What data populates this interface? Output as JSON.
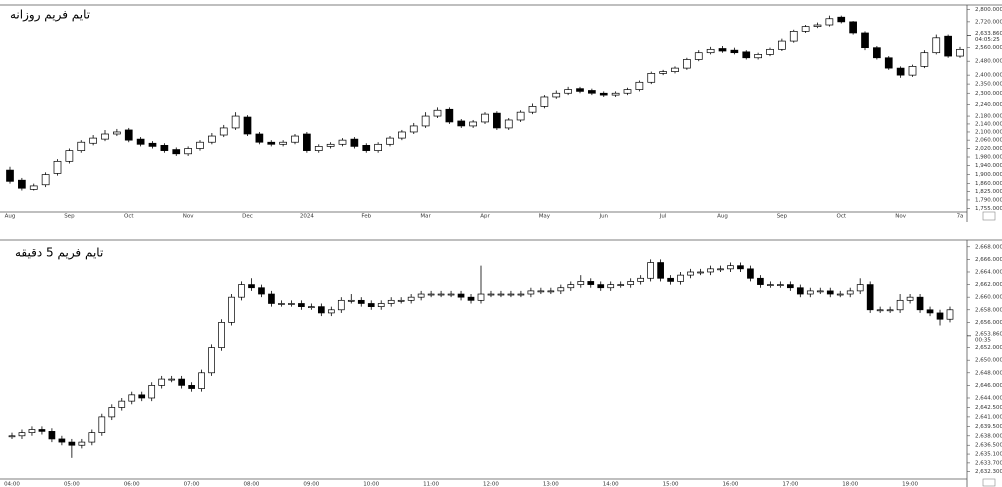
{
  "chart_data": [
    {
      "type": "candlestick",
      "title": "تایم فریم روزانه",
      "log_scale": true,
      "grid": false,
      "up_color": "#ffffff",
      "down_color": "#000000",
      "categories": [
        "Aug",
        null,
        null,
        null,
        null,
        "Sep",
        null,
        null,
        null,
        null,
        "Oct",
        null,
        null,
        null,
        null,
        "Nov",
        null,
        null,
        null,
        null,
        "Dec",
        null,
        null,
        null,
        null,
        "2024",
        null,
        null,
        null,
        null,
        "Feb",
        null,
        null,
        null,
        null,
        "Mar",
        null,
        null,
        null,
        null,
        "Apr",
        null,
        null,
        null,
        null,
        "May",
        null,
        null,
        null,
        null,
        "Jun",
        null,
        null,
        null,
        null,
        "Jul",
        null,
        null,
        null,
        null,
        "Aug",
        null,
        null,
        null,
        null,
        "Sep",
        null,
        null,
        null,
        null,
        "Oct",
        null,
        null,
        null,
        null,
        "Nov",
        null,
        null,
        null,
        null,
        "7a"
      ],
      "open": [
        1920,
        1875,
        1835,
        1855,
        1905,
        1960,
        2010,
        2045,
        2065,
        2090,
        2110,
        2065,
        2045,
        2035,
        2015,
        1995,
        2020,
        2050,
        2085,
        2120,
        2175,
        2090,
        2050,
        2040,
        2050,
        2090,
        2010,
        2030,
        2040,
        2065,
        2035,
        2010,
        2040,
        2070,
        2100,
        2130,
        2180,
        2215,
        2155,
        2130,
        2150,
        2195,
        2120,
        2160,
        2200,
        2230,
        2280,
        2300,
        2325,
        2315,
        2300,
        2290,
        2300,
        2320,
        2360,
        2410,
        2420,
        2440,
        2490,
        2530,
        2555,
        2545,
        2535,
        2500,
        2520,
        2550,
        2600,
        2660,
        2690,
        2700,
        2750,
        2720,
        2650,
        2560,
        2500,
        2440,
        2400,
        2450,
        2530,
        2630,
        2510
      ],
      "high": [
        1935,
        1885,
        1860,
        1910,
        1970,
        2020,
        2060,
        2085,
        2110,
        2115,
        2120,
        2075,
        2055,
        2045,
        2025,
        2030,
        2060,
        2095,
        2135,
        2200,
        2185,
        2100,
        2060,
        2060,
        2090,
        2100,
        2040,
        2050,
        2070,
        2075,
        2045,
        2050,
        2080,
        2110,
        2145,
        2200,
        2225,
        2225,
        2165,
        2160,
        2200,
        2205,
        2170,
        2210,
        2245,
        2290,
        2315,
        2335,
        2335,
        2325,
        2310,
        2310,
        2330,
        2370,
        2420,
        2430,
        2450,
        2500,
        2545,
        2565,
        2570,
        2560,
        2545,
        2530,
        2560,
        2615,
        2670,
        2700,
        2715,
        2760,
        2760,
        2725,
        2660,
        2570,
        2510,
        2450,
        2460,
        2545,
        2640,
        2640,
        2565
      ],
      "low": [
        1860,
        1830,
        1830,
        1845,
        1895,
        1950,
        2000,
        2035,
        2055,
        2080,
        2050,
        2030,
        2020,
        2000,
        1985,
        1985,
        2010,
        2040,
        2075,
        2110,
        2080,
        2040,
        2030,
        2030,
        2040,
        2000,
        2000,
        2020,
        2030,
        2020,
        2000,
        2000,
        2030,
        2060,
        2090,
        2120,
        2170,
        2140,
        2120,
        2120,
        2140,
        2110,
        2110,
        2150,
        2190,
        2220,
        2270,
        2290,
        2300,
        2290,
        2280,
        2280,
        2290,
        2310,
        2350,
        2400,
        2410,
        2430,
        2480,
        2520,
        2530,
        2520,
        2490,
        2490,
        2510,
        2540,
        2590,
        2650,
        2680,
        2690,
        2710,
        2640,
        2545,
        2490,
        2430,
        2385,
        2390,
        2440,
        2520,
        2500,
        2500
      ],
      "close": [
        1870,
        1840,
        1850,
        1900,
        1960,
        2010,
        2050,
        2070,
        2090,
        2100,
        2060,
        2040,
        2030,
        2010,
        1995,
        2020,
        2050,
        2080,
        2120,
        2180,
        2090,
        2050,
        2040,
        2050,
        2080,
        2010,
        2030,
        2040,
        2060,
        2030,
        2010,
        2040,
        2070,
        2100,
        2130,
        2180,
        2210,
        2150,
        2130,
        2150,
        2190,
        2120,
        2160,
        2200,
        2230,
        2280,
        2300,
        2320,
        2310,
        2300,
        2290,
        2300,
        2320,
        2360,
        2410,
        2420,
        2440,
        2490,
        2530,
        2550,
        2540,
        2530,
        2500,
        2520,
        2550,
        2600,
        2660,
        2690,
        2700,
        2740,
        2720,
        2650,
        2560,
        2500,
        2440,
        2400,
        2450,
        2530,
        2620,
        2510,
        2550
      ],
      "ylim": [
        1740,
        2830
      ],
      "yticks": [
        {
          "value": 2800,
          "label": "2,800.000"
        },
        {
          "value": 2720,
          "label": "2,720.000"
        },
        {
          "value": 2560,
          "label": "2,560.000"
        },
        {
          "value": 2480,
          "label": "2,480.000"
        },
        {
          "value": 2400,
          "label": "2,400.000"
        },
        {
          "value": 2350,
          "label": "2,350.000"
        },
        {
          "value": 2300,
          "label": "2,300.000"
        },
        {
          "value": 2240,
          "label": "2,240.000"
        },
        {
          "value": 2180,
          "label": "2,180.000"
        },
        {
          "value": 2140,
          "label": "2,140.000"
        },
        {
          "value": 2100,
          "label": "2,100.000"
        },
        {
          "value": 2060,
          "label": "2,060.000"
        },
        {
          "value": 2020,
          "label": "2,020.000"
        },
        {
          "value": 1980,
          "label": "1,980.000"
        },
        {
          "value": 1940,
          "label": "1,940.000"
        },
        {
          "value": 1900,
          "label": "1,900.000"
        },
        {
          "value": 1860,
          "label": "1,860.000"
        },
        {
          "value": 1825,
          "label": "1,825.000"
        },
        {
          "value": 1790,
          "label": "1,790.000"
        },
        {
          "value": 1755,
          "label": "1,755.000"
        }
      ],
      "price_marker": {
        "value": 2633.86,
        "label": "2,633.860",
        "timer": "04:05:25"
      }
    },
    {
      "type": "candlestick",
      "title": "تایم فریم 5 دقیقه",
      "log_scale": false,
      "grid": false,
      "up_color": "#ffffff",
      "down_color": "#000000",
      "categories": [
        "04:00",
        null,
        null,
        null,
        null,
        null,
        "05:00",
        null,
        null,
        null,
        null,
        null,
        "06:00",
        null,
        null,
        null,
        null,
        null,
        "07:00",
        null,
        null,
        null,
        null,
        null,
        "08:00",
        null,
        null,
        null,
        null,
        null,
        "09:00",
        null,
        null,
        null,
        null,
        null,
        "10:00",
        null,
        null,
        null,
        null,
        null,
        "11:00",
        null,
        null,
        null,
        null,
        null,
        "12:00",
        null,
        null,
        null,
        null,
        null,
        "13:00",
        null,
        null,
        null,
        null,
        null,
        "14:00",
        null,
        null,
        null,
        null,
        null,
        "15:00",
        null,
        null,
        null,
        null,
        null,
        "16:00",
        null,
        null,
        null,
        null,
        null,
        "17:00",
        null,
        null,
        null,
        null,
        null,
        "18:00",
        null,
        null,
        null,
        null,
        null,
        "19:00",
        null,
        null,
        null,
        null
      ],
      "open": [
        2638,
        2638,
        2638.5,
        2639,
        2638.7,
        2637.5,
        2637,
        2636.5,
        2637,
        2638.5,
        2641,
        2642.5,
        2643.5,
        2644.5,
        2644,
        2646,
        2647,
        2647,
        2646,
        2645.5,
        2648,
        2652,
        2656,
        2660,
        2662,
        2661.5,
        2660.5,
        2659,
        2659,
        2659,
        2658.5,
        2658.5,
        2657.5,
        2658,
        2659.5,
        2659.5,
        2659,
        2658.5,
        2659,
        2659.5,
        2659.5,
        2660,
        2660.5,
        2660.5,
        2660.5,
        2660.5,
        2660,
        2659.5,
        2660.5,
        2660.5,
        2660.5,
        2660.5,
        2660.5,
        2661,
        2661,
        2661,
        2661.5,
        2662,
        2662.5,
        2662,
        2661.5,
        2662,
        2662,
        2662.5,
        2663,
        2665.5,
        2663,
        2662.5,
        2663.5,
        2664,
        2664,
        2664.5,
        2664.5,
        2665,
        2664.5,
        2663,
        2662,
        2662,
        2662,
        2661.5,
        2660.5,
        2661,
        2661,
        2660.5,
        2660.5,
        2661,
        2662,
        2658,
        2658,
        2658,
        2659.5,
        2660,
        2658,
        2657.5,
        2656.5
      ],
      "high": [
        2638.5,
        2639,
        2639.5,
        2639.5,
        2639.2,
        2638,
        2637.5,
        2637.5,
        2639,
        2641.5,
        2643,
        2644,
        2645,
        2645,
        2646.5,
        2647.5,
        2647.5,
        2647.5,
        2646.5,
        2648.5,
        2652.5,
        2656.5,
        2660.5,
        2662.5,
        2663,
        2662,
        2661,
        2659.5,
        2659.5,
        2659.5,
        2659,
        2659,
        2658.5,
        2660,
        2660.5,
        2660,
        2659.5,
        2659.5,
        2660,
        2660,
        2660.5,
        2661,
        2661,
        2661,
        2661,
        2661,
        2660.5,
        2665,
        2661,
        2661,
        2661,
        2661,
        2661.5,
        2661.5,
        2661.5,
        2662,
        2662.5,
        2663.5,
        2663,
        2662.5,
        2662.5,
        2662.5,
        2663,
        2663.5,
        2666,
        2666,
        2663.5,
        2664,
        2664.5,
        2664.5,
        2665,
        2665,
        2665.5,
        2665.5,
        2665,
        2663.5,
        2662.5,
        2662.5,
        2662.5,
        2662,
        2661.5,
        2661.5,
        2661.5,
        2661,
        2661.5,
        2663,
        2662.5,
        2658.5,
        2658.5,
        2660.5,
        2660.5,
        2660.5,
        2658.5,
        2658,
        2658.5
      ],
      "low": [
        2637.5,
        2637.5,
        2638,
        2638.2,
        2637,
        2636.5,
        2634.5,
        2636,
        2636.5,
        2638,
        2640.5,
        2642,
        2643,
        2643.5,
        2643.5,
        2645.5,
        2646.5,
        2645.5,
        2645,
        2645,
        2647.5,
        2651.5,
        2655.5,
        2659.5,
        2661,
        2660,
        2658.5,
        2658.5,
        2658.5,
        2658,
        2658,
        2657,
        2657,
        2657.5,
        2659,
        2658.5,
        2658,
        2658,
        2658.5,
        2659,
        2659,
        2659.5,
        2660,
        2660,
        2660,
        2659.5,
        2659,
        2659,
        2660,
        2660,
        2660,
        2660,
        2660,
        2660.5,
        2660.5,
        2660.5,
        2661,
        2661.5,
        2661.5,
        2661,
        2661,
        2661.5,
        2661.5,
        2662,
        2662.5,
        2662.5,
        2662,
        2662,
        2663,
        2663.5,
        2663.5,
        2664,
        2664,
        2664,
        2662.5,
        2661.5,
        2661.5,
        2661.5,
        2661,
        2660,
        2660,
        2660.5,
        2660,
        2660,
        2660,
        2660.5,
        2657.5,
        2657.5,
        2657.5,
        2657.5,
        2659,
        2657.5,
        2657,
        2655.5,
        2656
      ],
      "close": [
        2638,
        2638.5,
        2639,
        2638.7,
        2637.5,
        2637,
        2636.5,
        2637,
        2638.5,
        2641,
        2642.5,
        2643.5,
        2644.5,
        2644,
        2646,
        2647,
        2647,
        2646,
        2645.5,
        2648,
        2652,
        2656,
        2660,
        2662,
        2661.5,
        2660.5,
        2659,
        2659,
        2659,
        2658.5,
        2658.5,
        2657.5,
        2658,
        2659.5,
        2659.5,
        2659,
        2658.5,
        2659,
        2659.5,
        2659.5,
        2660,
        2660.5,
        2660.5,
        2660.5,
        2660.5,
        2660,
        2659.5,
        2660.5,
        2660.5,
        2660.5,
        2660.5,
        2660.5,
        2661,
        2661,
        2661,
        2661.5,
        2662,
        2662.5,
        2662,
        2661.5,
        2662,
        2662,
        2662.5,
        2663,
        2665.5,
        2663,
        2662.5,
        2663.5,
        2664,
        2664,
        2664.5,
        2664.5,
        2665,
        2664.5,
        2663,
        2662,
        2662,
        2662,
        2661.5,
        2660.5,
        2661,
        2661,
        2660.5,
        2660.5,
        2661,
        2662,
        2658,
        2658,
        2658,
        2659.5,
        2660,
        2658,
        2657.5,
        2656.5,
        2658
      ],
      "ylim": [
        2631.3,
        2668.6
      ],
      "yticks": [
        {
          "value": 2668,
          "label": "2,668.000"
        },
        {
          "value": 2666,
          "label": "2,666.000"
        },
        {
          "value": 2664,
          "label": "2,664.000"
        },
        {
          "value": 2662,
          "label": "2,662.000"
        },
        {
          "value": 2660,
          "label": "2,660.000"
        },
        {
          "value": 2658,
          "label": "2,658.000"
        },
        {
          "value": 2656,
          "label": "2,656.000"
        },
        {
          "value": 2652,
          "label": "2,652.000"
        },
        {
          "value": 2650,
          "label": "2,650.000"
        },
        {
          "value": 2648,
          "label": "2,648.000"
        },
        {
          "value": 2646,
          "label": "2,646.000"
        },
        {
          "value": 2644,
          "label": "2,644.000"
        },
        {
          "value": 2642.5,
          "label": "2,642.500"
        },
        {
          "value": 2641,
          "label": "2,641.000"
        },
        {
          "value": 2639.5,
          "label": "2,639.500"
        },
        {
          "value": 2638,
          "label": "2,638.000"
        },
        {
          "value": 2636.5,
          "label": "2,636.500"
        },
        {
          "value": 2635.1,
          "label": "2,635.100"
        },
        {
          "value": 2633.7,
          "label": "2,633.700"
        },
        {
          "value": 2632.3,
          "label": "2,632.300"
        }
      ],
      "price_marker": {
        "value": 2653.86,
        "label": "2,653.860",
        "timer": "00:35"
      }
    }
  ]
}
